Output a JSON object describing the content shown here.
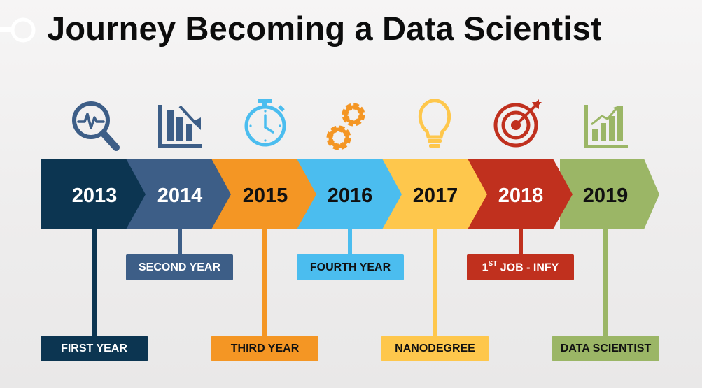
{
  "title": "Journey Becoming a Data Scientist",
  "colors": {
    "c2013": "#0c3551",
    "c2014": "#3d5e87",
    "c2015": "#f49624",
    "c2016": "#4bbdef",
    "c2017": "#fec74c",
    "c2018": "#c0301e",
    "c2019": "#9bb666"
  },
  "milestones": [
    {
      "year": "2013",
      "icon": "magnifier-pulse-icon",
      "label": "FIRST YEAR",
      "label_sup": "",
      "label_rest": ""
    },
    {
      "year": "2014",
      "icon": "bar-chart-down-icon",
      "label": "SECOND YEAR",
      "label_sup": "",
      "label_rest": ""
    },
    {
      "year": "2015",
      "icon": "stopwatch-icon",
      "label": "THIRD YEAR",
      "label_sup": "",
      "label_rest": ""
    },
    {
      "year": "2016",
      "icon": "gears-icon",
      "label": "FOURTH YEAR",
      "label_sup": "",
      "label_rest": ""
    },
    {
      "year": "2017",
      "icon": "lightbulb-icon",
      "label": "NANODEGREE",
      "label_sup": "",
      "label_rest": ""
    },
    {
      "year": "2018",
      "icon": "target-icon",
      "label": "1",
      "label_sup": "ST",
      "label_rest": " JOB - INFY"
    },
    {
      "year": "2019",
      "icon": "bar-chart-up-icon",
      "label": "DATA SCIENTIST",
      "label_sup": "",
      "label_rest": ""
    }
  ]
}
